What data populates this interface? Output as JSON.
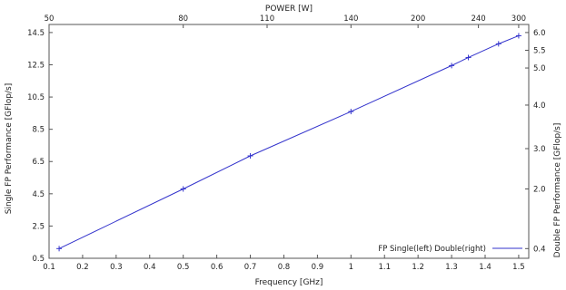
{
  "chart_data": {
    "type": "line",
    "title": "",
    "xlabel": "Frequency [GHz]",
    "ylabel": "Single FP Performance [GFlop/s]",
    "ylabel_right": "Double FP Performance [GFlop/s]",
    "xlabel_top": "POWER [W]",
    "xlim": [
      0.1,
      1.53
    ],
    "ylim": [
      0.5,
      15.0
    ],
    "x_ticks": [
      "0.1",
      "0.2",
      "0.3",
      "0.4",
      "0.5",
      "0.6",
      "0.7",
      "0.8",
      "0.9",
      "1",
      "1.1",
      "1.2",
      "1.3",
      "1.4",
      "1.5"
    ],
    "y_ticks": [
      "0.5",
      "2.5",
      "4.5",
      "6.5",
      "8.5",
      "10.5",
      "12.5",
      "14.5"
    ],
    "top_ticks": [
      {
        "label": "50",
        "at_frequency": 0.1
      },
      {
        "label": "80",
        "at_frequency": 0.5
      },
      {
        "label": "110",
        "at_frequency": 0.75
      },
      {
        "label": "140",
        "at_frequency": 1.0
      },
      {
        "label": "200",
        "at_frequency": 1.2
      },
      {
        "label": "240",
        "at_frequency": 1.38
      },
      {
        "label": "300",
        "at_frequency": 1.5
      }
    ],
    "right_ticks": [
      {
        "label": "6.0",
        "at_single": 14.5
      },
      {
        "label": "5.5",
        "at_single": 13.4
      },
      {
        "label": "5.0",
        "at_single": 12.3
      },
      {
        "label": "4.0",
        "at_single": 10.0
      },
      {
        "label": "3.0",
        "at_single": 7.3
      },
      {
        "label": "2.0",
        "at_single": 4.8
      },
      {
        "label": "0.4",
        "at_single": 1.1
      }
    ],
    "legend": {
      "label": "FP Single(left) Double(right)",
      "position": "bottom-right"
    },
    "grid": false,
    "series": [
      {
        "name": "FP Single(left) Double(right)",
        "color": "#3333cc",
        "x": [
          0.13,
          0.5,
          0.7,
          1.0,
          1.3,
          1.35,
          1.44,
          1.5
        ],
        "y": [
          1.1,
          4.8,
          6.85,
          9.6,
          12.45,
          12.95,
          13.8,
          14.3
        ]
      }
    ]
  }
}
